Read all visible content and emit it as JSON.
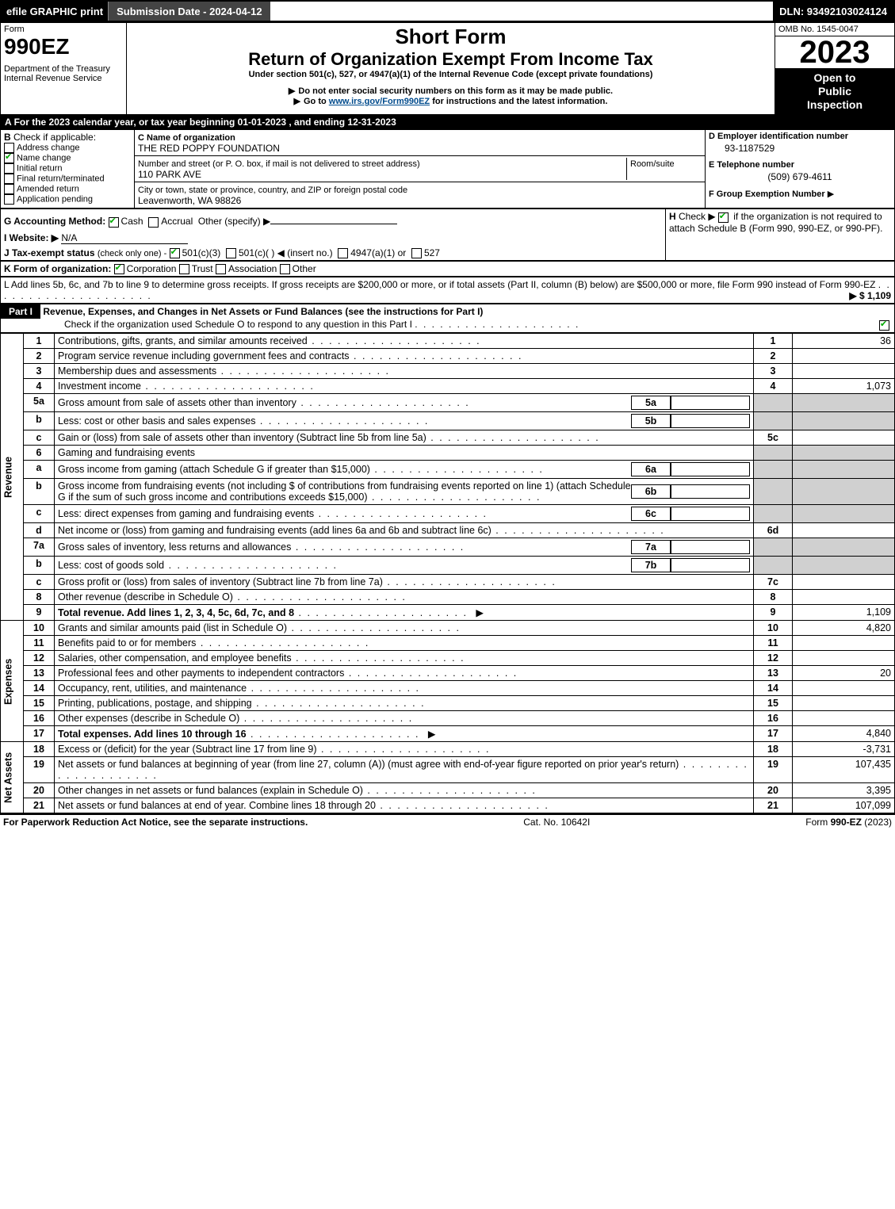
{
  "topbar": {
    "efile": "efile GRAPHIC print",
    "submission": "Submission Date - 2024-04-12",
    "dln": "DLN: 93492103024124"
  },
  "header": {
    "form_label": "Form",
    "form_number": "990EZ",
    "dept": "Department of the Treasury\nInternal Revenue Service",
    "short_form": "Short Form",
    "title": "Return of Organization Exempt From Income Tax",
    "subtitle": "Under section 501(c), 527, or 4947(a)(1) of the Internal Revenue Code (except private foundations)",
    "warn1": "Do not enter social security numbers on this form as it may be made public.",
    "warn2": "Go to www.irs.gov/Form990EZ for instructions and the latest information.",
    "omb": "OMB No. 1545-0047",
    "year": "2023",
    "open": "Open to\nPublic\nInspection"
  },
  "A": {
    "text": "For the 2023 calendar year, or tax year beginning 01-01-2023 , and ending 12-31-2023"
  },
  "B": {
    "label": "Check if applicable:",
    "opts": [
      {
        "label": "Address change",
        "checked": false
      },
      {
        "label": "Name change",
        "checked": true
      },
      {
        "label": "Initial return",
        "checked": false
      },
      {
        "label": "Final return/terminated",
        "checked": false
      },
      {
        "label": "Amended return",
        "checked": false
      },
      {
        "label": "Application pending",
        "checked": false
      }
    ]
  },
  "C": {
    "label": "C Name of organization",
    "name": "THE RED POPPY FOUNDATION",
    "street_label": "Number and street (or P. O. box, if mail is not delivered to street address)",
    "street": "110 PARK AVE",
    "room_label": "Room/suite",
    "city_label": "City or town, state or province, country, and ZIP or foreign postal code",
    "city": "Leavenworth, WA  98826"
  },
  "D": {
    "label": "D Employer identification number",
    "value": "93-1187529"
  },
  "E": {
    "label": "E Telephone number",
    "value": "(509) 679-4611"
  },
  "F": {
    "label": "F Group Exemption Number",
    "value": "▶"
  },
  "G": {
    "label": "G Accounting Method:",
    "cash": "Cash",
    "accrual": "Accrual",
    "other": "Other (specify) ▶"
  },
  "H": {
    "text": "Check ▶",
    "after": "if the organization is not required to attach Schedule B (Form 990, 990-EZ, or 990-PF)."
  },
  "I": {
    "label": "I Website: ▶",
    "value": "N/A"
  },
  "J": {
    "label": "J Tax-exempt status",
    "note": "(check only one) -",
    "opt1": "501(c)(3)",
    "opt2": "501(c)(  ) ◀ (insert no.)",
    "opt3": "4947(a)(1) or",
    "opt4": "527"
  },
  "K": {
    "label": "K Form of organization:",
    "opts": [
      "Corporation",
      "Trust",
      "Association",
      "Other"
    ]
  },
  "L": {
    "text": "L Add lines 5b, 6c, and 7b to line 9 to determine gross receipts. If gross receipts are $200,000 or more, or if total assets (Part II, column (B) below) are $500,000 or more, file Form 990 instead of Form 990-EZ",
    "value": "▶ $ 1,109"
  },
  "part1": {
    "title": "Part I",
    "heading": "Revenue, Expenses, and Changes in Net Assets or Fund Balances (see the instructions for Part I)",
    "check": "Check if the organization used Schedule O to respond to any question in this Part I"
  },
  "sections": {
    "revenue": "Revenue",
    "expenses": "Expenses",
    "netassets": "Net Assets"
  },
  "lines": [
    {
      "n": "1",
      "desc": "Contributions, gifts, grants, and similar amounts received",
      "box": "1",
      "val": "36"
    },
    {
      "n": "2",
      "desc": "Program service revenue including government fees and contracts",
      "box": "2",
      "val": ""
    },
    {
      "n": "3",
      "desc": "Membership dues and assessments",
      "box": "3",
      "val": ""
    },
    {
      "n": "4",
      "desc": "Investment income",
      "box": "4",
      "val": "1,073"
    },
    {
      "n": "5a",
      "desc": "Gross amount from sale of assets other than inventory",
      "mini": "5a"
    },
    {
      "n": "b",
      "desc": "Less: cost or other basis and sales expenses",
      "mini": "5b"
    },
    {
      "n": "c",
      "desc": "Gain or (loss) from sale of assets other than inventory (Subtract line 5b from line 5a)",
      "box": "5c",
      "val": ""
    },
    {
      "n": "6",
      "desc": "Gaming and fundraising events"
    },
    {
      "n": "a",
      "desc": "Gross income from gaming (attach Schedule G if greater than $15,000)",
      "mini": "6a"
    },
    {
      "n": "b",
      "desc": "Gross income from fundraising events (not including $                 of contributions from fundraising events reported on line 1) (attach Schedule G if the sum of such gross income and contributions exceeds $15,000)",
      "mini": "6b"
    },
    {
      "n": "c",
      "desc": "Less: direct expenses from gaming and fundraising events",
      "mini": "6c"
    },
    {
      "n": "d",
      "desc": "Net income or (loss) from gaming and fundraising events (add lines 6a and 6b and subtract line 6c)",
      "box": "6d",
      "val": ""
    },
    {
      "n": "7a",
      "desc": "Gross sales of inventory, less returns and allowances",
      "mini": "7a"
    },
    {
      "n": "b",
      "desc": "Less: cost of goods sold",
      "mini": "7b"
    },
    {
      "n": "c",
      "desc": "Gross profit or (loss) from sales of inventory (Subtract line 7b from line 7a)",
      "box": "7c",
      "val": ""
    },
    {
      "n": "8",
      "desc": "Other revenue (describe in Schedule O)",
      "box": "8",
      "val": ""
    },
    {
      "n": "9",
      "desc": "Total revenue. Add lines 1, 2, 3, 4, 5c, 6d, 7c, and 8",
      "box": "9",
      "val": "1,109",
      "arrow": true,
      "bold": true
    }
  ],
  "exp_lines": [
    {
      "n": "10",
      "desc": "Grants and similar amounts paid (list in Schedule O)",
      "box": "10",
      "val": "4,820"
    },
    {
      "n": "11",
      "desc": "Benefits paid to or for members",
      "box": "11",
      "val": ""
    },
    {
      "n": "12",
      "desc": "Salaries, other compensation, and employee benefits",
      "box": "12",
      "val": ""
    },
    {
      "n": "13",
      "desc": "Professional fees and other payments to independent contractors",
      "box": "13",
      "val": "20"
    },
    {
      "n": "14",
      "desc": "Occupancy, rent, utilities, and maintenance",
      "box": "14",
      "val": ""
    },
    {
      "n": "15",
      "desc": "Printing, publications, postage, and shipping",
      "box": "15",
      "val": ""
    },
    {
      "n": "16",
      "desc": "Other expenses (describe in Schedule O)",
      "box": "16",
      "val": ""
    },
    {
      "n": "17",
      "desc": "Total expenses. Add lines 10 through 16",
      "box": "17",
      "val": "4,840",
      "arrow": true,
      "bold": true
    }
  ],
  "net_lines": [
    {
      "n": "18",
      "desc": "Excess or (deficit) for the year (Subtract line 17 from line 9)",
      "box": "18",
      "val": "-3,731"
    },
    {
      "n": "19",
      "desc": "Net assets or fund balances at beginning of year (from line 27, column (A)) (must agree with end-of-year figure reported on prior year's return)",
      "box": "19",
      "val": "107,435"
    },
    {
      "n": "20",
      "desc": "Other changes in net assets or fund balances (explain in Schedule O)",
      "box": "20",
      "val": "3,395"
    },
    {
      "n": "21",
      "desc": "Net assets or fund balances at end of year. Combine lines 18 through 20",
      "box": "21",
      "val": "107,099"
    }
  ],
  "footer": {
    "left": "For Paperwork Reduction Act Notice, see the separate instructions.",
    "mid": "Cat. No. 10642I",
    "right": "Form 990-EZ (2023)"
  }
}
